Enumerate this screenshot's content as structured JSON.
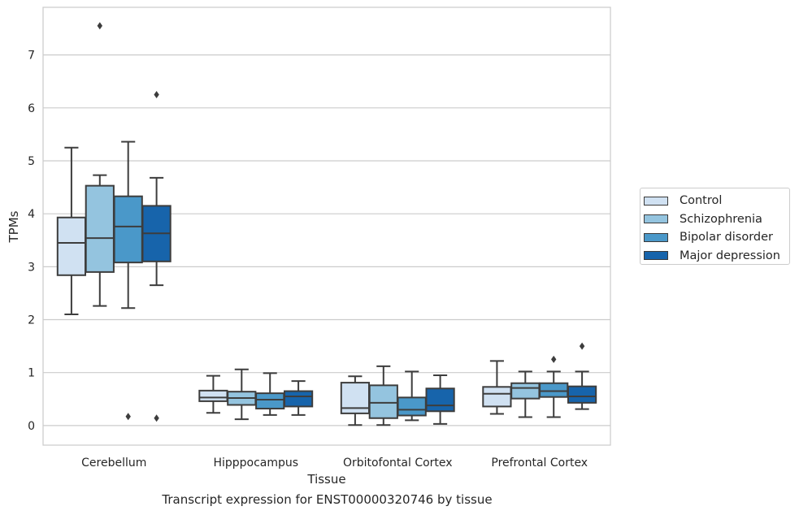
{
  "chart_data": {
    "type": "boxplot",
    "title": "Transcript expression for ENST00000320746 by tissue",
    "xlabel": "Tissue",
    "ylabel": "TPMs",
    "ylim": [
      -0.37,
      7.9
    ],
    "yticks": [
      0,
      1,
      2,
      3,
      4,
      5,
      6,
      7
    ],
    "grid": "horizontal",
    "legend_position": "right",
    "categories": [
      "Cerebellum",
      "Hipppocampus",
      "Orbitofontal Cortex",
      "Prefrontal Cortex"
    ],
    "series": [
      {
        "name": "Control",
        "color": "#d0e1f2",
        "boxes": [
          {
            "whislo": 2.1,
            "q1": 2.84,
            "med": 3.45,
            "q3": 3.93,
            "whishi": 5.25,
            "fliers": []
          },
          {
            "whislo": 0.24,
            "q1": 0.46,
            "med": 0.53,
            "q3": 0.66,
            "whishi": 0.94,
            "fliers": []
          },
          {
            "whislo": 0.01,
            "q1": 0.23,
            "med": 0.33,
            "q3": 0.81,
            "whishi": 0.93,
            "fliers": []
          },
          {
            "whislo": 0.22,
            "q1": 0.36,
            "med": 0.6,
            "q3": 0.73,
            "whishi": 1.22,
            "fliers": []
          }
        ]
      },
      {
        "name": "Schizophrenia",
        "color": "#94c4df",
        "boxes": [
          {
            "whislo": 2.26,
            "q1": 2.9,
            "med": 3.54,
            "q3": 4.53,
            "whishi": 4.73,
            "fliers": [
              7.55
            ]
          },
          {
            "whislo": 0.12,
            "q1": 0.39,
            "med": 0.52,
            "q3": 0.64,
            "whishi": 1.06,
            "fliers": []
          },
          {
            "whislo": 0.01,
            "q1": 0.14,
            "med": 0.43,
            "q3": 0.76,
            "whishi": 1.12,
            "fliers": []
          },
          {
            "whislo": 0.16,
            "q1": 0.51,
            "med": 0.71,
            "q3": 0.8,
            "whishi": 1.02,
            "fliers": []
          }
        ]
      },
      {
        "name": "Bipolar disorder",
        "color": "#4a98c9",
        "boxes": [
          {
            "whislo": 2.22,
            "q1": 3.08,
            "med": 3.76,
            "q3": 4.33,
            "whishi": 5.36,
            "fliers": [
              0.17
            ]
          },
          {
            "whislo": 0.2,
            "q1": 0.32,
            "med": 0.49,
            "q3": 0.61,
            "whishi": 0.99,
            "fliers": []
          },
          {
            "whislo": 0.1,
            "q1": 0.19,
            "med": 0.3,
            "q3": 0.53,
            "whishi": 1.02,
            "fliers": []
          },
          {
            "whislo": 0.16,
            "q1": 0.54,
            "med": 0.65,
            "q3": 0.8,
            "whishi": 1.02,
            "fliers": [
              1.25
            ]
          }
        ]
      },
      {
        "name": "Major depression",
        "color": "#1764ab",
        "boxes": [
          {
            "whislo": 2.65,
            "q1": 3.1,
            "med": 3.63,
            "q3": 4.15,
            "whishi": 4.68,
            "fliers": [
              6.25,
              0.14
            ]
          },
          {
            "whislo": 0.2,
            "q1": 0.36,
            "med": 0.55,
            "q3": 0.65,
            "whishi": 0.84,
            "fliers": []
          },
          {
            "whislo": 0.03,
            "q1": 0.27,
            "med": 0.38,
            "q3": 0.7,
            "whishi": 0.95,
            "fliers": []
          },
          {
            "whislo": 0.31,
            "q1": 0.43,
            "med": 0.55,
            "q3": 0.74,
            "whishi": 1.02,
            "fliers": [
              1.5
            ]
          }
        ]
      }
    ]
  }
}
